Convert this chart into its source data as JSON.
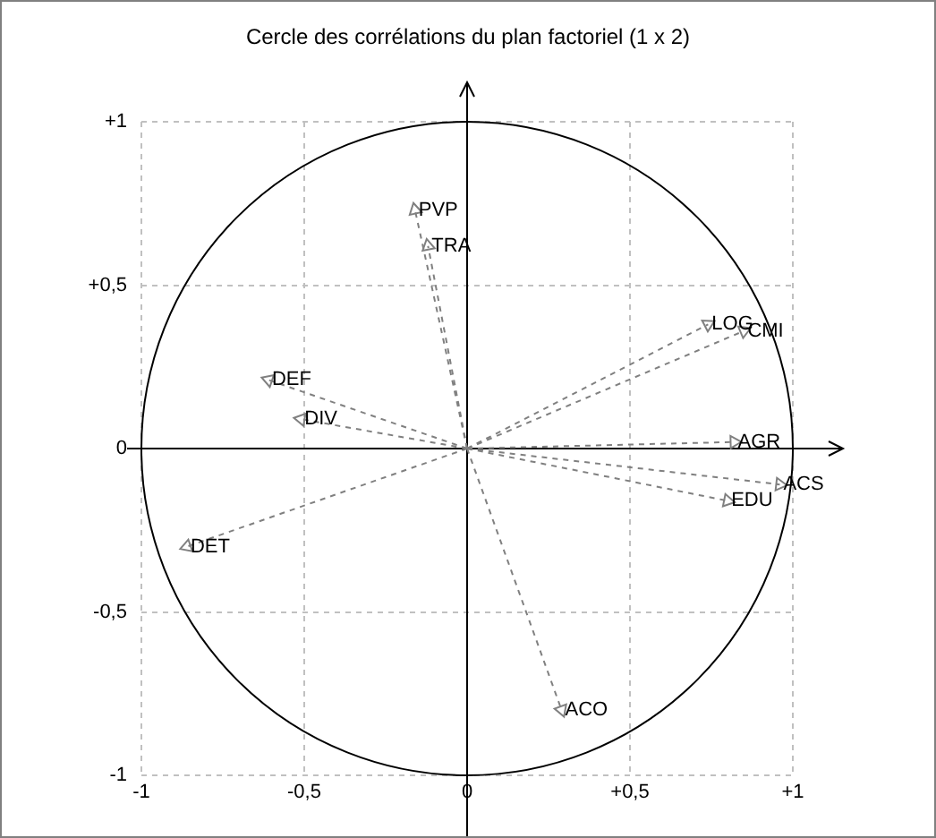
{
  "chart_data": {
    "type": "scatter",
    "title": "Cercle des corrélations du plan factoriel (1 x 2)",
    "x": [
      -0.16,
      -0.12,
      -0.61,
      -0.51,
      -0.86,
      0.74,
      0.85,
      0.82,
      0.96,
      0.8,
      0.29
    ],
    "values": [
      0.73,
      0.62,
      0.21,
      0.09,
      -0.3,
      0.38,
      0.36,
      0.02,
      -0.11,
      -0.16,
      -0.8
    ],
    "color": "#808080",
    "marker": "triangle",
    "annotations": [
      {
        "text": "PVP",
        "x": -0.16,
        "y": 0.73
      },
      {
        "text": "TRA",
        "x": -0.12,
        "y": 0.62
      },
      {
        "text": "DEF",
        "x": -0.61,
        "y": 0.21
      },
      {
        "text": "DIV",
        "x": -0.51,
        "y": 0.09
      },
      {
        "text": "DET",
        "x": -0.86,
        "y": -0.3
      },
      {
        "text": "LOG",
        "x": 0.74,
        "y": 0.38
      },
      {
        "text": "CMI",
        "x": 0.85,
        "y": 0.36
      },
      {
        "text": "AGR",
        "x": 0.82,
        "y": 0.02
      },
      {
        "text": "ACS",
        "x": 0.96,
        "y": -0.11
      },
      {
        "text": "EDU",
        "x": 0.8,
        "y": -0.16
      },
      {
        "text": "ACO",
        "x": 0.29,
        "y": -0.8
      }
    ],
    "xlim": [
      -1,
      1
    ],
    "ylim": [
      -1,
      1
    ],
    "xticks": [
      {
        "value": -1,
        "label": "-1"
      },
      {
        "value": -0.5,
        "label": "-0,5"
      },
      {
        "value": 0,
        "label": "0"
      },
      {
        "value": 0.5,
        "label": "+0,5"
      },
      {
        "value": 1,
        "label": "+1"
      }
    ],
    "yticks": [
      {
        "value": -1,
        "label": "-1"
      },
      {
        "value": -0.5,
        "label": "-0,5"
      },
      {
        "value": 0,
        "label": "0"
      },
      {
        "value": 0.5,
        "label": "+0,5"
      },
      {
        "value": 1,
        "label": "+1"
      }
    ],
    "grid": true,
    "legend": false
  }
}
